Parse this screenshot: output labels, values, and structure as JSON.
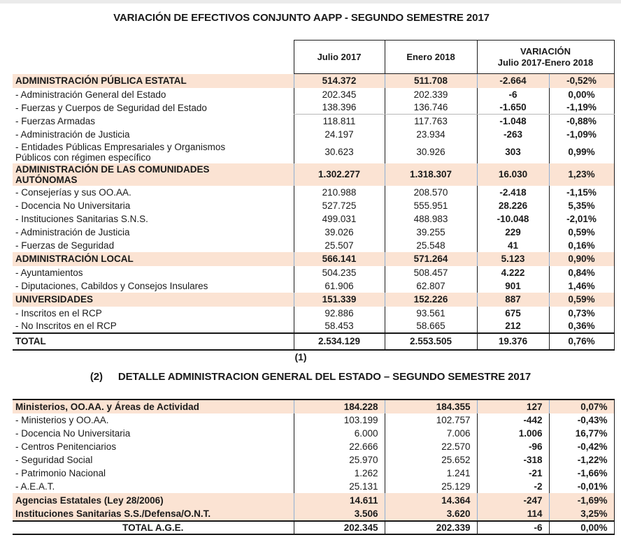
{
  "titles": {
    "table1": "VARIACIÓN DE EFECTIVOS CONJUNTO AAPP - SEGUNDO SEMESTRE 2017",
    "footnote1": "(1)",
    "table2_marker": "(2)",
    "table2_text": "DETALLE ADMINISTRACION GENERAL DEL ESTADO – SEGUNDO SEMESTRE 2017"
  },
  "colors": {
    "section_row_bg": "#FBE3D3",
    "grid_border": "#1C1C1C",
    "section_grid_border": "#8FAFD4",
    "text": "#1A1A1A"
  },
  "table1": {
    "columns": {
      "julio": "Julio 2017",
      "enero": "Enero 2018",
      "variacion_line1": "VARIACIÓN",
      "variacion_line2": "Julio 2017-Enero 2018"
    },
    "rows": [
      {
        "type": "section",
        "label": "ADMINISTRACIÓN PÚBLICA ESTATAL",
        "julio": "514.372",
        "enero": "511.708",
        "variacion": "-2.664",
        "pct": "-0,52%"
      },
      {
        "type": "item",
        "label": "- Administración General del Estado",
        "julio": "202.345",
        "enero": "202.339",
        "variacion": "-6",
        "pct": "0,00%"
      },
      {
        "type": "item",
        "label": "- Fuerzas y Cuerpos de Seguridad del Estado",
        "julio": "138.396",
        "enero": "136.746",
        "variacion": "-1.650",
        "pct": "-1,19%",
        "divider_after": true
      },
      {
        "type": "item",
        "label": "- Fuerzas Armadas",
        "julio": "118.811",
        "enero": "117.763",
        "variacion": "-1.048",
        "pct": "-0,88%"
      },
      {
        "type": "item",
        "label": "- Administración de Justicia",
        "julio": "24.197",
        "enero": "23.934",
        "variacion": "-263",
        "pct": "-1,09%"
      },
      {
        "type": "item",
        "label": "- Entidades Públicas Empresariales y Organismos\nPúblicos con régimen específico",
        "julio": "30.623",
        "enero": "30.926",
        "variacion": "303",
        "pct": "0,99%"
      },
      {
        "type": "section",
        "label": "ADMINISTRACIÓN DE LAS COMUNIDADES\nAUTÓNOMAS",
        "julio": "1.302.277",
        "enero": "1.318.307",
        "variacion": "16.030",
        "pct": "1,23%"
      },
      {
        "type": "item",
        "label": "- Consejerías y sus OO.AA.",
        "julio": "210.988",
        "enero": "208.570",
        "variacion": "-2.418",
        "pct": "-1,15%"
      },
      {
        "type": "item",
        "label": "- Docencia No Universitaria",
        "julio": "527.725",
        "enero": "555.951",
        "variacion": "28.226",
        "pct": "5,35%"
      },
      {
        "type": "item",
        "label": "- Instituciones Sanitarias S.N.S.",
        "julio": "499.031",
        "enero": "488.983",
        "variacion": "-10.048",
        "pct": "-2,01%"
      },
      {
        "type": "item",
        "label": "- Administración de Justicia",
        "julio": "39.026",
        "enero": "39.255",
        "variacion": "229",
        "pct": "0,59%"
      },
      {
        "type": "item",
        "label": "- Fuerzas de Seguridad",
        "julio": "25.507",
        "enero": "25.548",
        "variacion": "41",
        "pct": "0,16%"
      },
      {
        "type": "section",
        "label": "ADMINISTRACIÓN LOCAL",
        "julio": "566.141",
        "enero": "571.264",
        "variacion": "5.123",
        "pct": "0,90%"
      },
      {
        "type": "item",
        "label": "- Ayuntamientos",
        "julio": "504.235",
        "enero": "508.457",
        "variacion": "4.222",
        "pct": "0,84%"
      },
      {
        "type": "item",
        "label": "- Diputaciones, Cabildos y Consejos Insulares",
        "julio": "61.906",
        "enero": "62.807",
        "variacion": "901",
        "pct": "1,46%"
      },
      {
        "type": "section",
        "label": "UNIVERSIDADES",
        "julio": "151.339",
        "enero": "152.226",
        "variacion": "887",
        "pct": "0,59%"
      },
      {
        "type": "item",
        "label": "- Inscritos en el RCP",
        "julio": "92.886",
        "enero": "93.561",
        "variacion": "675",
        "pct": "0,73%"
      },
      {
        "type": "item",
        "label": "- No Inscritos en el RCP",
        "julio": "58.453",
        "enero": "58.665",
        "variacion": "212",
        "pct": "0,36%"
      },
      {
        "type": "total",
        "label": "TOTAL",
        "julio": "2.534.129",
        "enero": "2.553.505",
        "variacion": "19.376",
        "pct": "0,76%"
      }
    ]
  },
  "table2": {
    "rows": [
      {
        "type": "section",
        "label": "Ministerios, OO.AA. y Áreas de Actividad",
        "julio": "184.228",
        "enero": "184.355",
        "variacion": "127",
        "pct": "0,07%"
      },
      {
        "type": "item",
        "label": "- Ministerios y OO.AA.",
        "julio": "103.199",
        "enero": "102.757",
        "variacion": "-442",
        "pct": "-0,43%"
      },
      {
        "type": "item",
        "label": "- Docencia No Universitaria",
        "julio": "6.000",
        "enero": "7.006",
        "variacion": "1.006",
        "pct": "16,77%"
      },
      {
        "type": "item",
        "label": "- Centros Penitenciarios",
        "julio": "22.666",
        "enero": "22.570",
        "variacion": "-96",
        "pct": "-0,42%"
      },
      {
        "type": "item",
        "label": "- Seguridad Social",
        "julio": "25.970",
        "enero": "25.652",
        "variacion": "-318",
        "pct": "-1,22%"
      },
      {
        "type": "item",
        "label": "- Patrimonio Nacional",
        "julio": "1.262",
        "enero": "1.241",
        "variacion": "-21",
        "pct": "-1,66%"
      },
      {
        "type": "item",
        "label": "- A.E.A.T.",
        "julio": "25.131",
        "enero": "25.129",
        "variacion": "-2",
        "pct": "-0,01%"
      },
      {
        "type": "section",
        "label": "Agencias Estatales (Ley 28/2006)",
        "julio": "14.611",
        "enero": "14.364",
        "variacion": "-247",
        "pct": "-1,69%"
      },
      {
        "type": "section",
        "label": "Instituciones Sanitarias S.S./Defensa/O.N.T.",
        "julio": "3.506",
        "enero": "3.620",
        "variacion": "114",
        "pct": "3,25%"
      },
      {
        "type": "total",
        "label": "TOTAL A.G.E.",
        "julio": "202.345",
        "enero": "202.339",
        "variacion": "-6",
        "pct": "0,00%"
      }
    ]
  }
}
